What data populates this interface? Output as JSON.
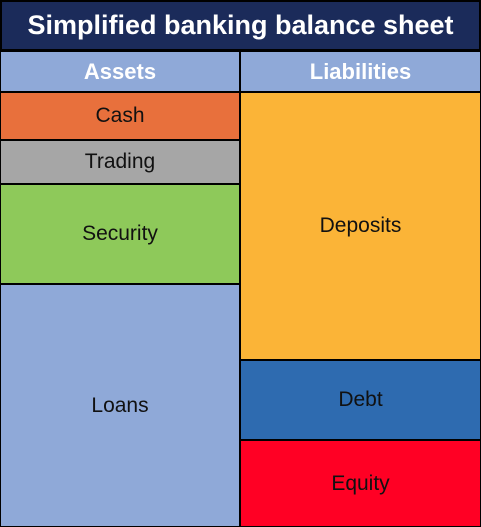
{
  "title": "Simplified banking balance sheet",
  "columns": {
    "assets": "Assets",
    "liabilities": "Liabilities"
  },
  "assets": [
    {
      "label": "Cash",
      "color": "#e8703c"
    },
    {
      "label": "Trading",
      "color": "#a6a6a6"
    },
    {
      "label": "Security",
      "color": "#8ec95a"
    },
    {
      "label": "Loans",
      "color": "#8fa9d8"
    }
  ],
  "liabilities": [
    {
      "label": "Deposits",
      "color": "#fbb437"
    },
    {
      "label": "Debt",
      "color": "#2e6bb0"
    },
    {
      "label": "Equity",
      "color": "#ff0024"
    }
  ]
}
